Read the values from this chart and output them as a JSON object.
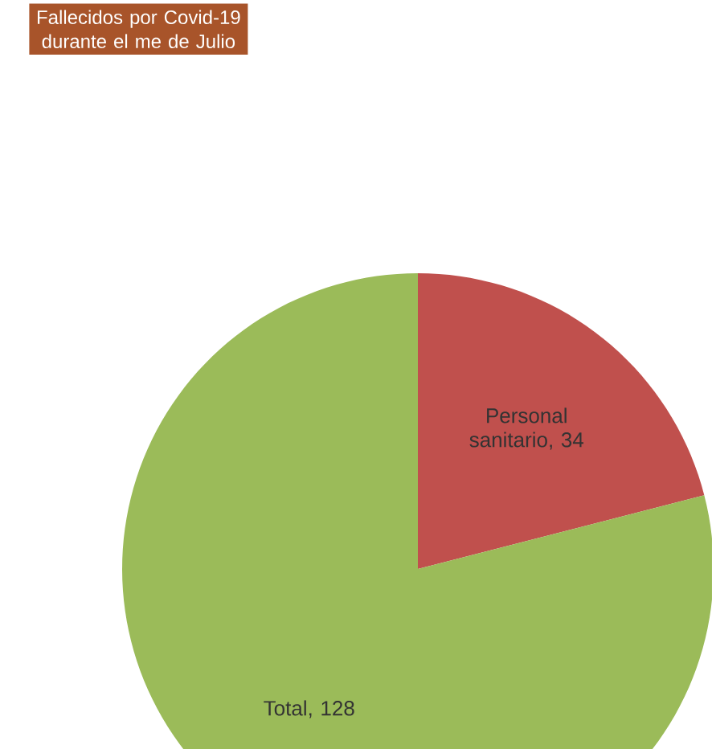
{
  "chart_data": {
    "type": "pie",
    "title": "Fallecidos por Covid-19 durante el me de Julio",
    "categories": [
      null,
      null
    ],
    "values": [
      34,
      128
    ],
    "value_labels": [
      "Personal sanitario, 34",
      "Total, 128"
    ],
    "colors": [
      "#c0504d",
      "#9bbb59"
    ]
  }
}
